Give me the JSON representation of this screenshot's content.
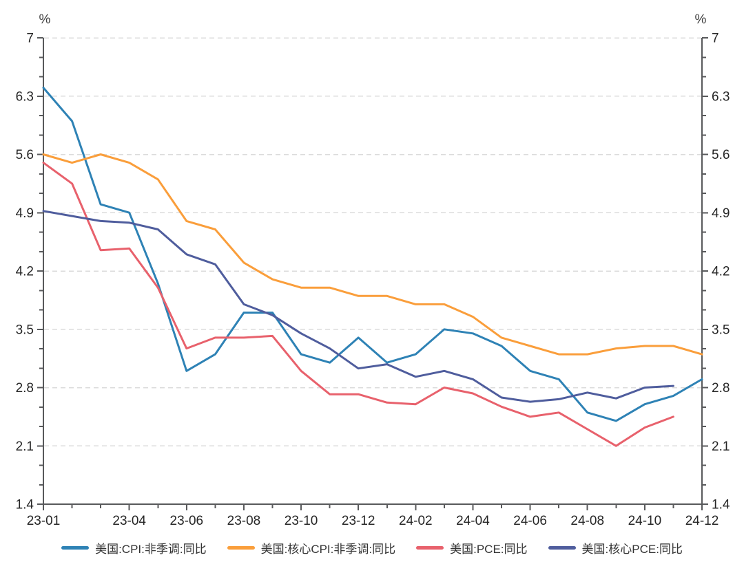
{
  "chart_data": {
    "type": "line",
    "unit_left": "%",
    "unit_right": "%",
    "ylim": [
      1.4,
      7
    ],
    "y_major_step": 0.7,
    "y_minor_divisions": 3,
    "grid": "horizontal-dashed",
    "legend_position": "bottom",
    "colors": {
      "axis": "#58595B",
      "grid": "#DBDBDB",
      "tick_text": "#262626",
      "legend_text": "#333333"
    },
    "y_ticks": [
      {
        "value": 7,
        "label": "7"
      },
      {
        "value": 6.3,
        "label": "6.3"
      },
      {
        "value": 5.6,
        "label": "5.6"
      },
      {
        "value": 4.9,
        "label": "4.9"
      },
      {
        "value": 4.2,
        "label": "4.2"
      },
      {
        "value": 3.5,
        "label": "3.5"
      },
      {
        "value": 2.8,
        "label": "2.8"
      },
      {
        "value": 2.1,
        "label": "2.1"
      },
      {
        "value": 1.4,
        "label": "1.4"
      }
    ],
    "x_months": [
      "23-01",
      "23-02",
      "23-03",
      "23-04",
      "23-05",
      "23-06",
      "23-07",
      "23-08",
      "23-09",
      "23-10",
      "23-11",
      "23-12",
      "24-01",
      "24-02",
      "24-03",
      "24-04",
      "24-05",
      "24-06",
      "24-07",
      "24-08",
      "24-09",
      "24-10",
      "24-11",
      "24-12"
    ],
    "x_tick_labels_shown": [
      {
        "month_index": 0,
        "label": "23-01"
      },
      {
        "month_index": 3,
        "label": "23-04"
      },
      {
        "month_index": 5,
        "label": "23-06"
      },
      {
        "month_index": 7,
        "label": "23-08"
      },
      {
        "month_index": 9,
        "label": "23-10"
      },
      {
        "month_index": 11,
        "label": "23-12"
      },
      {
        "month_index": 13,
        "label": "24-02"
      },
      {
        "month_index": 15,
        "label": "24-04"
      },
      {
        "month_index": 17,
        "label": "24-06"
      },
      {
        "month_index": 19,
        "label": "24-08"
      },
      {
        "month_index": 21,
        "label": "24-10"
      },
      {
        "month_index": 23,
        "label": "24-12"
      }
    ],
    "series": [
      {
        "key": "cpi",
        "name": "美国:CPI:非季调:同比",
        "color": "#2E82B5",
        "values": [
          6.4,
          6.0,
          5.0,
          4.9,
          4.05,
          3.0,
          3.2,
          3.7,
          3.7,
          3.2,
          3.1,
          3.4,
          3.1,
          3.2,
          3.5,
          3.45,
          3.3,
          3.0,
          2.9,
          2.5,
          2.4,
          2.6,
          2.7,
          2.9
        ]
      },
      {
        "key": "core-cpi",
        "name": "美国:核心CPI:非季调:同比",
        "color": "#FA9E3B",
        "values": [
          5.6,
          5.5,
          5.6,
          5.5,
          5.3,
          4.8,
          4.7,
          4.3,
          4.1,
          4.0,
          4.0,
          3.9,
          3.9,
          3.8,
          3.8,
          3.65,
          3.4,
          3.3,
          3.2,
          3.2,
          3.27,
          3.3,
          3.3,
          3.2
        ]
      },
      {
        "key": "pce",
        "name": "美国:PCE:同比",
        "color": "#E8616C",
        "values": [
          5.5,
          5.25,
          4.45,
          4.47,
          4.0,
          3.27,
          3.4,
          3.4,
          3.42,
          3.0,
          2.72,
          2.72,
          2.62,
          2.6,
          2.8,
          2.73,
          2.57,
          2.45,
          2.5,
          2.3,
          2.1,
          2.32,
          2.45,
          null
        ]
      },
      {
        "key": "core-pce",
        "name": "美国:核心PCE:同比",
        "color": "#4F5D9D",
        "values": [
          4.92,
          4.86,
          4.8,
          4.78,
          4.7,
          4.4,
          4.28,
          3.8,
          3.67,
          3.45,
          3.27,
          3.03,
          3.08,
          2.93,
          3.0,
          2.9,
          2.68,
          2.63,
          2.66,
          2.74,
          2.67,
          2.8,
          2.82,
          null
        ]
      }
    ]
  }
}
